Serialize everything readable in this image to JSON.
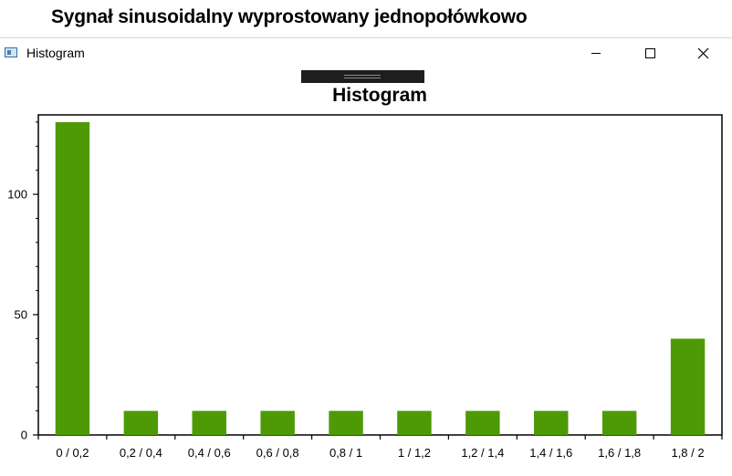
{
  "backdrop": {
    "title": "Sygnał sinusoidalny wyprostowany jednopołówkowo"
  },
  "window": {
    "title": "Histogram",
    "icon": "app-window-icon",
    "controls": {
      "minimize": "minimize-icon",
      "maximize": "maximize-icon",
      "close": "close-icon"
    }
  },
  "chart_data": {
    "type": "bar",
    "title": "Histogram",
    "categories": [
      "0 / 0,2",
      "0,2 / 0,4",
      "0,4 / 0,6",
      "0,6 / 0,8",
      "0,8 / 1",
      "1 / 1,2",
      "1,2 / 1,4",
      "1,4 / 1,6",
      "1,6 / 1,8",
      "1,8 / 2"
    ],
    "values": [
      130,
      10,
      10,
      10,
      10,
      10,
      10,
      10,
      10,
      40
    ],
    "ylim": [
      0,
      133
    ],
    "yticks": [
      0,
      50,
      100
    ],
    "xlabel": "",
    "ylabel": "",
    "bar_color": "#4e9a06",
    "grid": false
  }
}
